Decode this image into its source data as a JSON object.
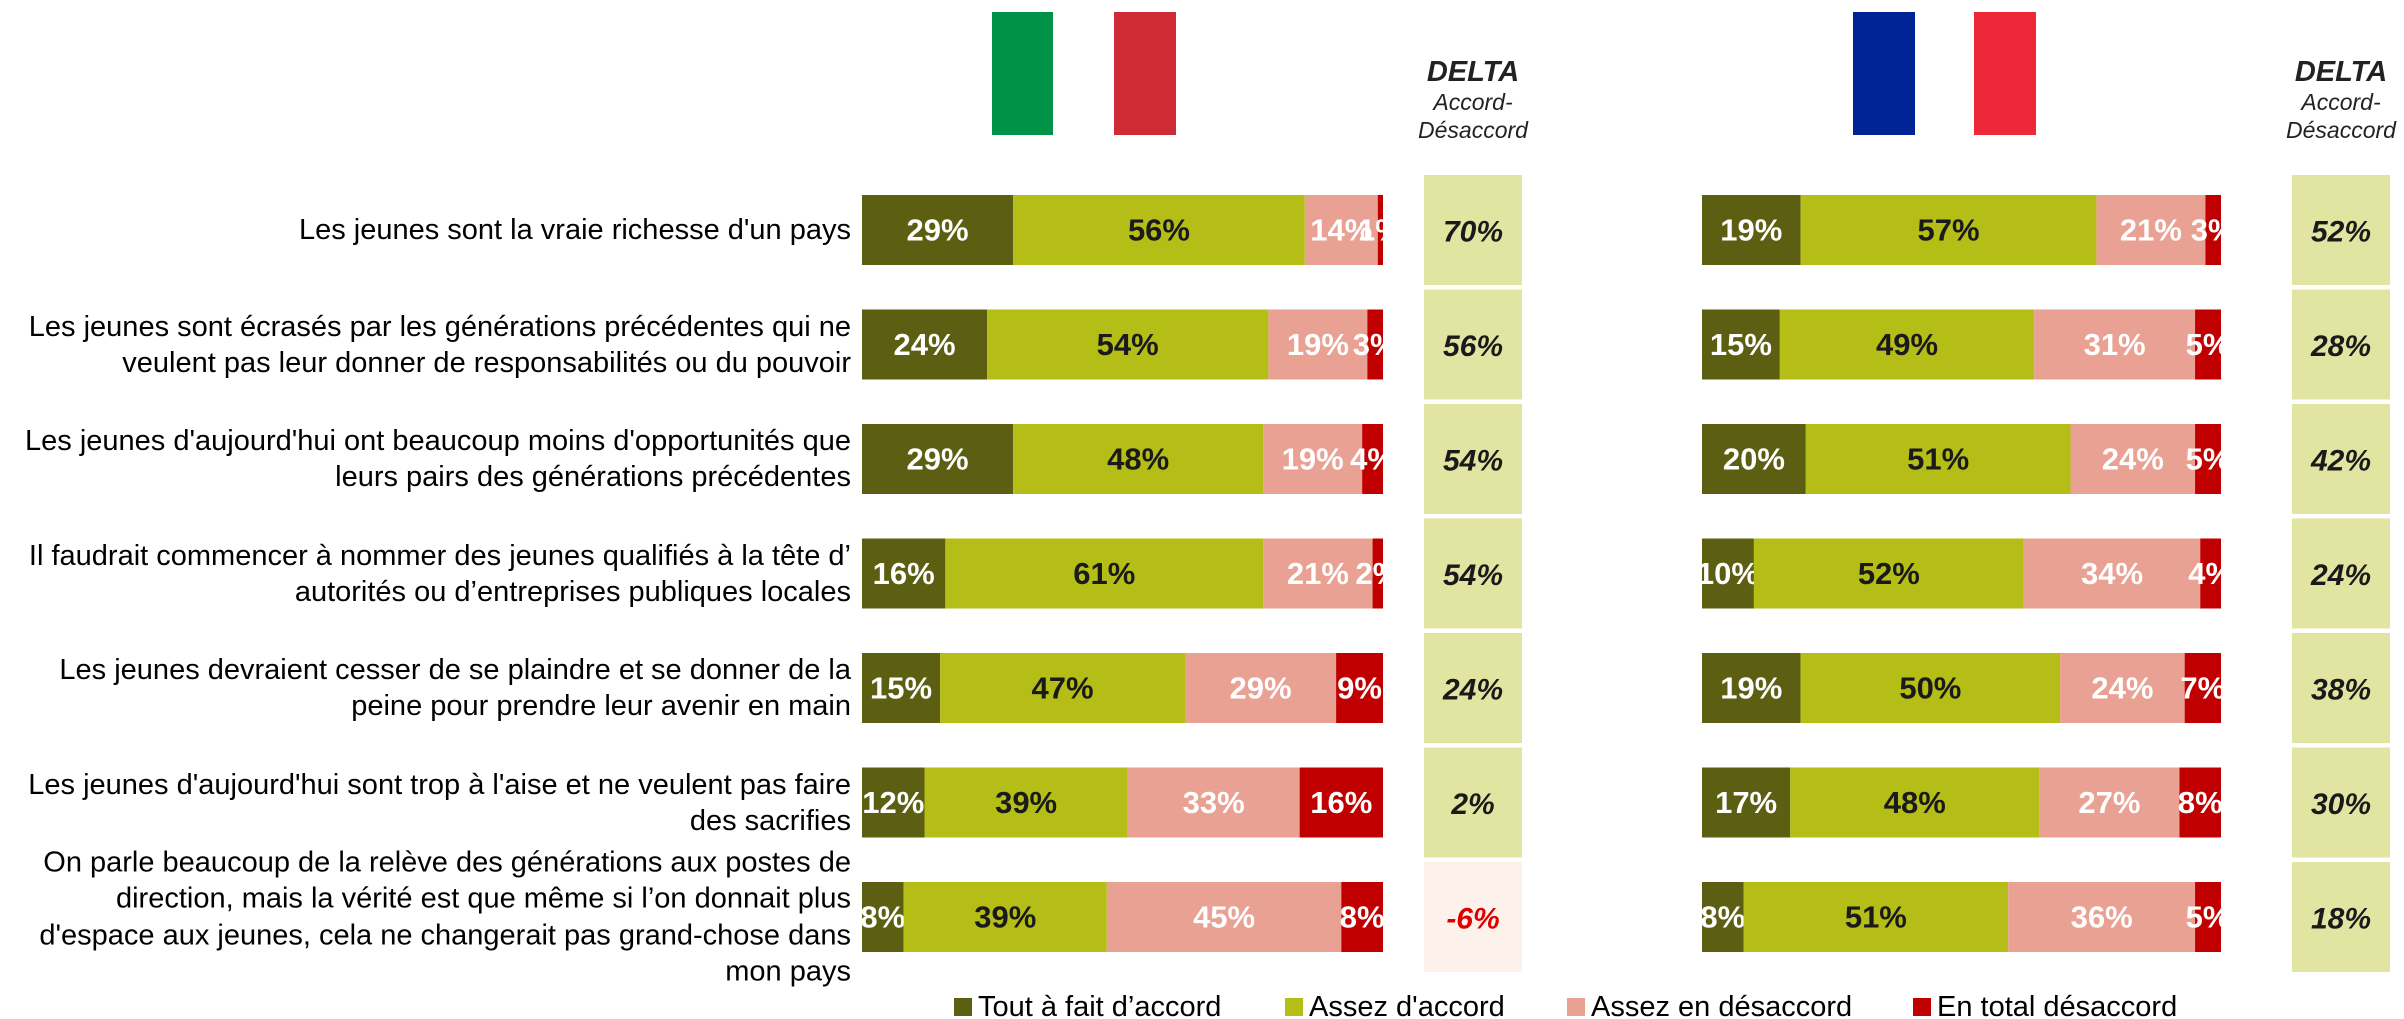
{
  "chart_data": [
    {
      "type": "bar",
      "orientation": "horizontal",
      "stacked": true,
      "categories": [
        "Les jeunes sont la vraie richesse d'un pays",
        "Les jeunes sont écrasés par les générations précédentes qui ne veulent pas leur donner de responsabilités ou du pouvoir",
        "Les jeunes d'aujourd'hui ont beaucoup moins d'opportunités que leurs pairs des générations précédentes",
        "Il faudrait commencer à nommer des jeunes qualifiés à la tête d’ autorités ou d’entreprises publiques locales",
        "Les jeunes devraient cesser de se plaindre et se donner de la peine pour prendre leur avenir en main",
        "Les jeunes d'aujourd'hui sont trop à l'aise et ne veulent pas faire des sacrifies",
        "On parle beaucoup de la relève des générations aux postes de direction, mais la vérité est que même si l’on donnait plus d'espace aux jeunes, cela ne changerait pas grand-chose dans mon pays"
      ],
      "series": [
        {
          "name": "Tout à fait d’accord",
          "color": "#5c5f12",
          "label_color": "#ffffff",
          "values": [
            29,
            24,
            29,
            16,
            15,
            12,
            8
          ],
          "value_labels": [
            "29%",
            "24%",
            "29%",
            "16%",
            "15%",
            "12%",
            "8%"
          ]
        },
        {
          "name": "Assez d'accord",
          "color": "#b5bd17",
          "label_color": "#1a1a1a",
          "values": [
            56,
            54,
            48,
            61,
            47,
            39,
            39
          ],
          "value_labels": [
            "56%",
            "54%",
            "48%",
            "61%",
            "47%",
            "39%",
            "39%"
          ]
        },
        {
          "name": "Assez en désaccord",
          "color": "#e8a192",
          "label_color": "#ffffff",
          "values": [
            14,
            19,
            19,
            21,
            29,
            33,
            45
          ],
          "value_labels": [
            "14%",
            "19%",
            "19%",
            "21%",
            "29%",
            "33%",
            "45%"
          ]
        },
        {
          "name": "En total désaccord",
          "color": "#c00000",
          "label_color": "#ffffff",
          "values": [
            1,
            3,
            4,
            2,
            9,
            16,
            8
          ],
          "value_labels": [
            "1%",
            "3%",
            "4%",
            "2%",
            "9%",
            "16%",
            "8%"
          ]
        }
      ],
      "delta": {
        "title": "DELTA",
        "subtitle": "Accord-Désaccord",
        "color": "#e1e5a1",
        "text_color": "#1a1a1a",
        "negative_color": "#fdf1eb",
        "negative_text_color": "#e00000",
        "values": [
          70,
          56,
          54,
          54,
          24,
          2,
          -6
        ],
        "value_labels": [
          "70%",
          "56%",
          "54%",
          "54%",
          "24%",
          "2%",
          "-6%"
        ]
      }
    },
    {
      "type": "bar",
      "orientation": "horizontal",
      "stacked": true,
      "series": [
        {
          "color": "#5c5f12",
          "label_color": "#ffffff",
          "values": [
            19,
            15,
            20,
            10,
            19,
            17,
            8
          ],
          "value_labels": [
            "19%",
            "15%",
            "20%",
            "10%",
            "19%",
            "17%",
            "8%"
          ]
        },
        {
          "color": "#b5bd17",
          "label_color": "#1a1a1a",
          "values": [
            57,
            49,
            51,
            52,
            50,
            48,
            51
          ],
          "value_labels": [
            "57%",
            "49%",
            "51%",
            "52%",
            "50%",
            "48%",
            "51%"
          ]
        },
        {
          "color": "#e8a192",
          "label_color": "#ffffff",
          "values": [
            21,
            31,
            24,
            34,
            24,
            27,
            36
          ],
          "value_labels": [
            "21%",
            "31%",
            "24%",
            "34%",
            "24%",
            "27%",
            "36%"
          ]
        },
        {
          "color": "#c00000",
          "label_color": "#ffffff",
          "values": [
            3,
            5,
            5,
            4,
            7,
            8,
            5
          ],
          "value_labels": [
            "3%",
            "5%",
            "5%",
            "4%",
            "7%",
            "8%",
            "5%"
          ]
        }
      ],
      "delta": {
        "title": "DELTA",
        "subtitle": "Accord-Désaccord",
        "color": "#e1e5a1",
        "text_color": "#1a1a1a",
        "negative_color": "#fdf1eb",
        "negative_text_color": "#e00000",
        "values": [
          52,
          28,
          42,
          24,
          38,
          30,
          18
        ],
        "value_labels": [
          "52%",
          "28%",
          "42%",
          "24%",
          "38%",
          "30%",
          "18%"
        ]
      }
    }
  ]
}
